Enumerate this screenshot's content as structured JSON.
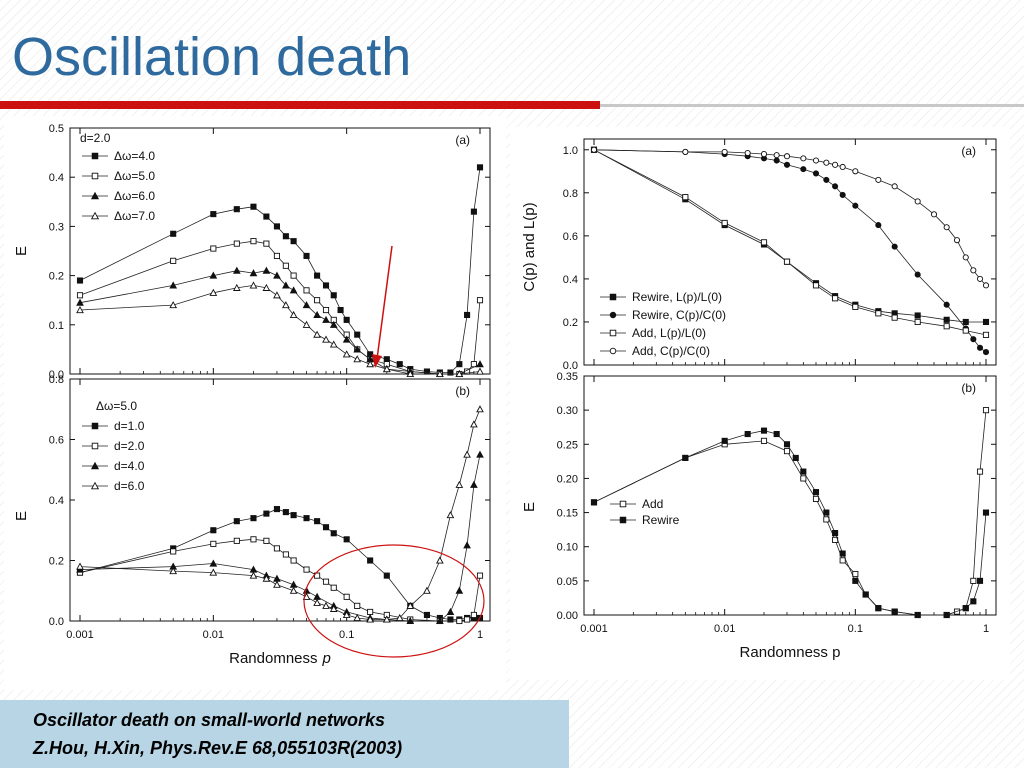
{
  "title": "Oscillation death",
  "caption": {
    "line1": "Oscillator death on small-world networks",
    "line2": "Z.Hou, H.Xin, Phys.Rev.E 68,055103R(2003)"
  },
  "colors": {
    "title": "#2e6a9e",
    "accent_rule": "#cc1111",
    "caption_bg": "#b7d5e4",
    "annotation": "#cc1111"
  },
  "chart_data": [
    {
      "id": "left-a",
      "type": "line",
      "panel_label": "(a)",
      "xscale": "log",
      "xlim": [
        0.001,
        1
      ],
      "ylim": [
        0,
        0.5
      ],
      "yticks": [
        "0.0",
        "0.1",
        "0.2",
        "0.3",
        "0.4",
        "0.5"
      ],
      "yticks_num": [
        0,
        0.1,
        0.2,
        0.3,
        0.4,
        0.5
      ],
      "ylabel": "E",
      "xlabel": "",
      "legend_title": "d=2.0",
      "legend_position": "top-left",
      "annotation": "red arrow pointing at minimum near p=0.2",
      "series": [
        {
          "name": "Δω=4.0",
          "marker": "square-filled",
          "x": [
            0.001,
            0.005,
            0.01,
            0.015,
            0.02,
            0.025,
            0.03,
            0.035,
            0.04,
            0.05,
            0.06,
            0.07,
            0.08,
            0.09,
            0.1,
            0.12,
            0.15,
            0.2,
            0.25,
            0.3,
            0.4,
            0.5,
            0.6,
            0.7,
            0.8,
            0.9,
            1.0
          ],
          "y": [
            0.19,
            0.285,
            0.325,
            0.335,
            0.34,
            0.32,
            0.3,
            0.28,
            0.27,
            0.24,
            0.2,
            0.18,
            0.16,
            0.13,
            0.11,
            0.08,
            0.04,
            0.03,
            0.02,
            0.01,
            0.005,
            0.003,
            0.003,
            0.02,
            0.12,
            0.33,
            0.42
          ]
        },
        {
          "name": "Δω=5.0",
          "marker": "square-open",
          "x": [
            0.001,
            0.005,
            0.01,
            0.015,
            0.02,
            0.025,
            0.03,
            0.035,
            0.04,
            0.05,
            0.06,
            0.07,
            0.08,
            0.1,
            0.12,
            0.15,
            0.2,
            0.3,
            0.5,
            0.7,
            0.8,
            0.9,
            1.0
          ],
          "y": [
            0.16,
            0.23,
            0.255,
            0.265,
            0.27,
            0.265,
            0.24,
            0.22,
            0.2,
            0.17,
            0.15,
            0.13,
            0.11,
            0.08,
            0.05,
            0.03,
            0.02,
            0.005,
            0.0,
            0.0,
            0.005,
            0.02,
            0.15
          ]
        },
        {
          "name": "Δω=6.0",
          "marker": "triangle-filled",
          "x": [
            0.001,
            0.005,
            0.01,
            0.015,
            0.02,
            0.025,
            0.03,
            0.035,
            0.04,
            0.05,
            0.06,
            0.07,
            0.08,
            0.1,
            0.12,
            0.15,
            0.2,
            0.3,
            0.5,
            0.7,
            1.0
          ],
          "y": [
            0.145,
            0.18,
            0.2,
            0.21,
            0.205,
            0.21,
            0.2,
            0.18,
            0.17,
            0.14,
            0.12,
            0.11,
            0.1,
            0.07,
            0.05,
            0.03,
            0.01,
            0.005,
            0.0,
            0.0,
            0.02
          ]
        },
        {
          "name": "Δω=7.0",
          "marker": "triangle-open",
          "x": [
            0.001,
            0.005,
            0.01,
            0.015,
            0.02,
            0.025,
            0.03,
            0.035,
            0.04,
            0.05,
            0.06,
            0.07,
            0.08,
            0.1,
            0.12,
            0.15,
            0.2,
            0.3,
            0.5,
            0.7,
            1.0
          ],
          "y": [
            0.13,
            0.14,
            0.165,
            0.175,
            0.18,
            0.175,
            0.16,
            0.14,
            0.12,
            0.1,
            0.08,
            0.07,
            0.06,
            0.04,
            0.03,
            0.02,
            0.01,
            0.0,
            0.0,
            0.0,
            0.005
          ]
        }
      ]
    },
    {
      "id": "left-b",
      "type": "line",
      "panel_label": "(b)",
      "xscale": "log",
      "xlim": [
        0.001,
        1
      ],
      "ylim": [
        0,
        0.8
      ],
      "xticks": [
        "0.001",
        "0.01",
        "0.1",
        "1"
      ],
      "xticks_num": [
        0.001,
        0.01,
        0.1,
        1
      ],
      "yticks": [
        "0.0",
        "0.2",
        "0.4",
        "0.6",
        "0.8"
      ],
      "yticks_num": [
        0,
        0.2,
        0.4,
        0.6,
        0.8
      ],
      "ylabel": "E",
      "xlabel": "Randomness",
      "xlabel_var": "p",
      "legend_title": "Δω=5.0",
      "legend_position": "top-left",
      "annotation": "red ellipse around region p≈0.05–1",
      "series": [
        {
          "name": "d=1.0",
          "marker": "square-filled",
          "x": [
            0.001,
            0.005,
            0.01,
            0.015,
            0.02,
            0.025,
            0.03,
            0.035,
            0.04,
            0.05,
            0.06,
            0.07,
            0.08,
            0.1,
            0.15,
            0.2,
            0.3,
            0.4,
            0.5,
            0.6,
            0.7,
            0.8,
            0.9,
            1.0
          ],
          "y": [
            0.16,
            0.24,
            0.3,
            0.33,
            0.34,
            0.355,
            0.37,
            0.36,
            0.35,
            0.34,
            0.33,
            0.31,
            0.29,
            0.27,
            0.2,
            0.15,
            0.05,
            0.02,
            0.01,
            0.005,
            0.005,
            0.01,
            0.01,
            0.01
          ]
        },
        {
          "name": "d=2.0",
          "marker": "square-open",
          "x": [
            0.001,
            0.005,
            0.01,
            0.015,
            0.02,
            0.025,
            0.03,
            0.035,
            0.04,
            0.05,
            0.06,
            0.07,
            0.08,
            0.1,
            0.12,
            0.15,
            0.2,
            0.3,
            0.5,
            0.7,
            0.8,
            0.9,
            1.0
          ],
          "y": [
            0.16,
            0.23,
            0.255,
            0.265,
            0.27,
            0.265,
            0.24,
            0.22,
            0.2,
            0.17,
            0.15,
            0.13,
            0.11,
            0.08,
            0.05,
            0.03,
            0.02,
            0.005,
            0.0,
            0.0,
            0.005,
            0.02,
            0.15
          ]
        },
        {
          "name": "d=4.0",
          "marker": "triangle-filled",
          "x": [
            0.001,
            0.005,
            0.01,
            0.02,
            0.025,
            0.03,
            0.04,
            0.05,
            0.06,
            0.08,
            0.1,
            0.15,
            0.2,
            0.3,
            0.5,
            0.6,
            0.7,
            0.8,
            0.9,
            1.0
          ],
          "y": [
            0.17,
            0.18,
            0.19,
            0.17,
            0.15,
            0.14,
            0.12,
            0.1,
            0.08,
            0.05,
            0.03,
            0.01,
            0.005,
            0.0,
            0.0,
            0.03,
            0.1,
            0.25,
            0.45,
            0.55
          ]
        },
        {
          "name": "d=6.0",
          "marker": "triangle-open",
          "x": [
            0.001,
            0.005,
            0.01,
            0.02,
            0.025,
            0.03,
            0.04,
            0.05,
            0.06,
            0.07,
            0.08,
            0.1,
            0.12,
            0.15,
            0.2,
            0.25,
            0.3,
            0.4,
            0.5,
            0.6,
            0.7,
            0.8,
            0.9,
            1.0
          ],
          "y": [
            0.18,
            0.165,
            0.16,
            0.15,
            0.14,
            0.12,
            0.1,
            0.08,
            0.06,
            0.05,
            0.04,
            0.02,
            0.01,
            0.005,
            0.005,
            0.01,
            0.05,
            0.1,
            0.2,
            0.35,
            0.45,
            0.55,
            0.65,
            0.7
          ]
        }
      ]
    },
    {
      "id": "right-a",
      "type": "line",
      "panel_label": "(a)",
      "xscale": "log",
      "xlim": [
        0.001,
        1
      ],
      "ylim": [
        0,
        1.05
      ],
      "yticks": [
        "0.0",
        "0.2",
        "0.4",
        "0.6",
        "0.8",
        "1.0"
      ],
      "yticks_num": [
        0,
        0.2,
        0.4,
        0.6,
        0.8,
        1.0
      ],
      "ylabel": "C(p) and L(p)",
      "xlabel": "",
      "legend_position": "bottom-left",
      "series": [
        {
          "name": "Rewire, L(p)/L(0)",
          "marker": "square-filled",
          "x": [
            0.001,
            0.005,
            0.01,
            0.02,
            0.03,
            0.05,
            0.07,
            0.1,
            0.15,
            0.2,
            0.3,
            0.5,
            0.7,
            1.0
          ],
          "y": [
            1.0,
            0.77,
            0.65,
            0.56,
            0.48,
            0.38,
            0.32,
            0.28,
            0.25,
            0.24,
            0.23,
            0.21,
            0.2,
            0.2
          ]
        },
        {
          "name": "Rewire, C(p)/C(0)",
          "marker": "circle-filled",
          "x": [
            0.001,
            0.005,
            0.01,
            0.015,
            0.02,
            0.025,
            0.03,
            0.04,
            0.05,
            0.06,
            0.07,
            0.08,
            0.1,
            0.15,
            0.2,
            0.3,
            0.5,
            0.7,
            0.8,
            0.9,
            1.0
          ],
          "y": [
            1.0,
            0.99,
            0.98,
            0.97,
            0.96,
            0.95,
            0.93,
            0.91,
            0.89,
            0.86,
            0.83,
            0.79,
            0.74,
            0.65,
            0.55,
            0.42,
            0.28,
            0.17,
            0.12,
            0.08,
            0.06
          ]
        },
        {
          "name": "Add,      L(p)/L(0)",
          "marker": "square-open",
          "x": [
            0.001,
            0.005,
            0.01,
            0.02,
            0.03,
            0.05,
            0.07,
            0.1,
            0.15,
            0.2,
            0.3,
            0.5,
            0.7,
            1.0
          ],
          "y": [
            1.0,
            0.78,
            0.66,
            0.57,
            0.48,
            0.37,
            0.31,
            0.27,
            0.24,
            0.22,
            0.2,
            0.18,
            0.16,
            0.14
          ]
        },
        {
          "name": "Add,      C(p)/C(0)",
          "marker": "circle-open",
          "x": [
            0.001,
            0.005,
            0.01,
            0.015,
            0.02,
            0.025,
            0.03,
            0.04,
            0.05,
            0.06,
            0.07,
            0.08,
            0.1,
            0.15,
            0.2,
            0.3,
            0.4,
            0.5,
            0.6,
            0.7,
            0.8,
            0.9,
            1.0
          ],
          "y": [
            1.0,
            0.99,
            0.99,
            0.985,
            0.98,
            0.975,
            0.97,
            0.96,
            0.95,
            0.94,
            0.93,
            0.92,
            0.9,
            0.86,
            0.83,
            0.76,
            0.7,
            0.64,
            0.58,
            0.5,
            0.44,
            0.4,
            0.37
          ]
        }
      ]
    },
    {
      "id": "right-b",
      "type": "line",
      "panel_label": "(b)",
      "xscale": "log",
      "xlim": [
        0.001,
        1
      ],
      "ylim": [
        0,
        0.35
      ],
      "xticks": [
        "0.001",
        "0.01",
        "0.1",
        "1"
      ],
      "xticks_num": [
        0.001,
        0.01,
        0.1,
        1
      ],
      "yticks": [
        "0.00",
        "0.05",
        "0.10",
        "0.15",
        "0.20",
        "0.25",
        "0.30",
        "0.35"
      ],
      "yticks_num": [
        0,
        0.05,
        0.1,
        0.15,
        0.2,
        0.25,
        0.3,
        0.35
      ],
      "ylabel": "E",
      "xlabel": "Randomness p",
      "legend_position": "middle-left",
      "series": [
        {
          "name": "Add",
          "marker": "square-open",
          "x": [
            0.001,
            0.005,
            0.01,
            0.02,
            0.03,
            0.04,
            0.05,
            0.06,
            0.07,
            0.08,
            0.1,
            0.12,
            0.15,
            0.2,
            0.3,
            0.5,
            0.6,
            0.7,
            0.8,
            0.9,
            1.0
          ],
          "y": [
            0.165,
            0.23,
            0.25,
            0.255,
            0.24,
            0.2,
            0.17,
            0.14,
            0.11,
            0.08,
            0.06,
            0.03,
            0.01,
            0.005,
            0.0,
            0.0,
            0.005,
            0.01,
            0.05,
            0.21,
            0.3
          ]
        },
        {
          "name": "Rewire",
          "marker": "square-filled",
          "x": [
            0.001,
            0.005,
            0.01,
            0.015,
            0.02,
            0.025,
            0.03,
            0.035,
            0.04,
            0.05,
            0.06,
            0.07,
            0.08,
            0.1,
            0.12,
            0.15,
            0.2,
            0.3,
            0.5,
            0.7,
            0.8,
            0.9,
            1.0
          ],
          "y": [
            0.165,
            0.23,
            0.255,
            0.265,
            0.27,
            0.265,
            0.25,
            0.23,
            0.21,
            0.18,
            0.15,
            0.12,
            0.09,
            0.05,
            0.03,
            0.01,
            0.005,
            0.0,
            0.0,
            0.01,
            0.02,
            0.05,
            0.15
          ]
        }
      ]
    }
  ]
}
